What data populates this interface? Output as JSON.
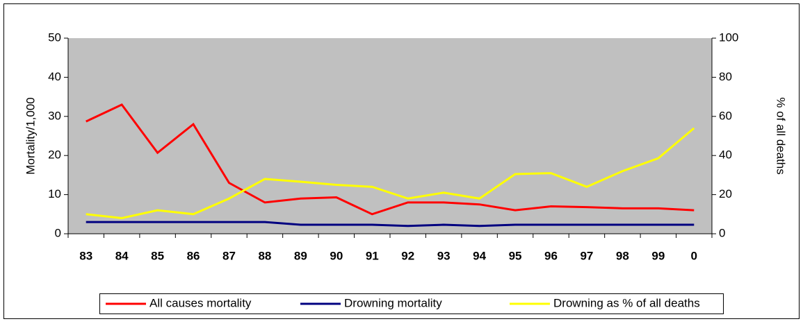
{
  "chart_data": {
    "type": "line",
    "categories": [
      "83",
      "84",
      "85",
      "86",
      "87",
      "88",
      "89",
      "90",
      "91",
      "92",
      "93",
      "94",
      "95",
      "96",
      "97",
      "98",
      "99",
      "0"
    ],
    "ylabel": "Mortality/1,000",
    "y2label": "% of all deaths",
    "ylim": [
      0,
      50
    ],
    "yticks": [
      0,
      10,
      20,
      30,
      40,
      50
    ],
    "y2lim": [
      0,
      100
    ],
    "y2ticks": [
      0,
      20,
      40,
      60,
      80,
      100
    ],
    "series": [
      {
        "name": "All causes mortality",
        "color": "#ff0000",
        "values": [
          28.7,
          33,
          20.7,
          28,
          13,
          8,
          9,
          9.3,
          5,
          8,
          8,
          7.5,
          6,
          7,
          6.8,
          6.5,
          6.5,
          6
        ]
      },
      {
        "name": "Drowning mortality",
        "color": "#000080",
        "values": [
          3,
          3,
          3,
          3,
          3,
          3,
          2.3,
          2.3,
          2.3,
          2,
          2.3,
          2,
          2.3,
          2.3,
          2.3,
          2.3,
          2.3,
          2.3
        ]
      },
      {
        "name": "Drowning as % of all deaths",
        "color": "#ffff00",
        "axis": "y2",
        "values": [
          10,
          8,
          12,
          10,
          18,
          28,
          26.6,
          25,
          24,
          18,
          21,
          18,
          30.5,
          31,
          24,
          32,
          38.6,
          54
        ]
      }
    ]
  }
}
